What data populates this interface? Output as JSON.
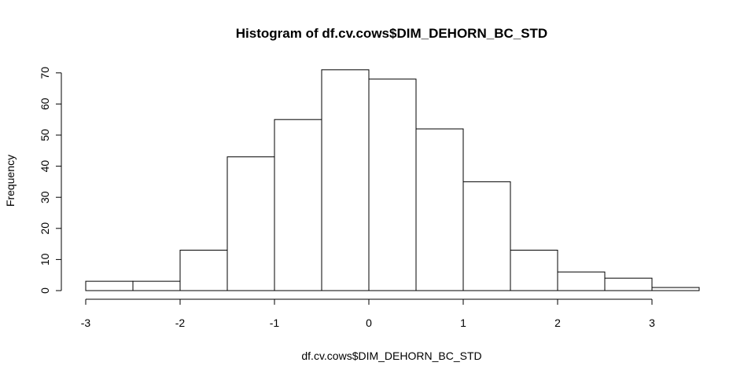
{
  "chart_data": {
    "type": "bar",
    "title": "Histogram of df.cv.cows$DIM_DEHORN_BC_STD",
    "xlabel": "df.cv.cows$DIM_DEHORN_BC_STD",
    "ylabel": "Frequency",
    "bins": [
      {
        "start": -3.0,
        "end": -2.5,
        "count": 3
      },
      {
        "start": -2.5,
        "end": -2.0,
        "count": 3
      },
      {
        "start": -2.0,
        "end": -1.5,
        "count": 13
      },
      {
        "start": -1.5,
        "end": -1.0,
        "count": 43
      },
      {
        "start": -1.0,
        "end": -0.5,
        "count": 55
      },
      {
        "start": -0.5,
        "end": 0.0,
        "count": 71
      },
      {
        "start": 0.0,
        "end": 0.5,
        "count": 68
      },
      {
        "start": 0.5,
        "end": 1.0,
        "count": 52
      },
      {
        "start": 1.0,
        "end": 1.5,
        "count": 35
      },
      {
        "start": 1.5,
        "end": 2.0,
        "count": 13
      },
      {
        "start": 2.0,
        "end": 2.5,
        "count": 6
      },
      {
        "start": 2.5,
        "end": 3.0,
        "count": 4
      },
      {
        "start": 3.0,
        "end": 3.5,
        "count": 1
      }
    ],
    "x_ticks": [
      "-3",
      "-2",
      "-1",
      "0",
      "1",
      "2",
      "3"
    ],
    "y_ticks": [
      "0",
      "10",
      "20",
      "30",
      "40",
      "50",
      "60",
      "70"
    ],
    "xlim": [
      -3,
      3.5
    ],
    "ylim": [
      0,
      71
    ],
    "grid": false,
    "legend": "none"
  }
}
